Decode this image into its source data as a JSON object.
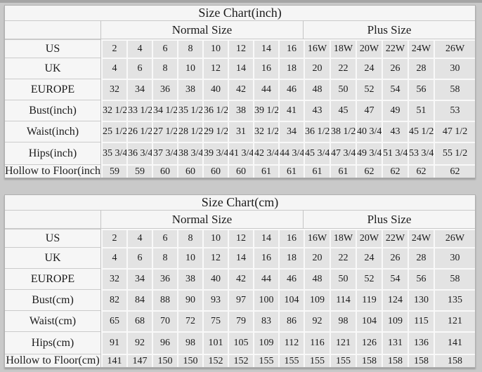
{
  "page": {
    "background_color": "#c9c9c9",
    "top_strip_color": "#a5a5a5",
    "label_cell_color": "#f6f6f6",
    "data_cell_color": "#e3e3e3",
    "text_color": "#1b1b1b"
  },
  "chart_data": [
    {
      "type": "table",
      "title": "Size Chart(inch)",
      "column_groups": [
        {
          "label": "Normal Size",
          "span": 8
        },
        {
          "label": "Plus Size",
          "span": 6
        }
      ],
      "rows": [
        {
          "label": "US",
          "values": [
            "2",
            "4",
            "6",
            "8",
            "10",
            "12",
            "14",
            "16",
            "16W",
            "18W",
            "20W",
            "22W",
            "24W",
            "26W"
          ]
        },
        {
          "label": "UK",
          "values": [
            "4",
            "6",
            "8",
            "10",
            "12",
            "14",
            "16",
            "18",
            "20",
            "22",
            "24",
            "26",
            "28",
            "30"
          ]
        },
        {
          "label": "EUROPE",
          "values": [
            "32",
            "34",
            "36",
            "38",
            "40",
            "42",
            "44",
            "46",
            "48",
            "50",
            "52",
            "54",
            "56",
            "58"
          ]
        },
        {
          "label": "Bust(inch)",
          "values": [
            "32 1/2",
            "33 1/2",
            "34 1/2",
            "35 1/2",
            "36 1/2",
            "38",
            "39 1/2",
            "41",
            "43",
            "45",
            "47",
            "49",
            "51",
            "53"
          ]
        },
        {
          "label": "Waist(inch)",
          "values": [
            "25 1/2",
            "26 1/2",
            "27 1/2",
            "28 1/2",
            "29 1/2",
            "31",
            "32 1/2",
            "34",
            "36 1/2",
            "38 1/2",
            "40 3/4",
            "43",
            "45 1/2",
            "47 1/2"
          ]
        },
        {
          "label": "Hips(inch)",
          "values": [
            "35 3/4",
            "36 3/4",
            "37 3/4",
            "38 3/4",
            "39 3/4",
            "41 3/4",
            "42 3/4",
            "44 3/4",
            "45 3/4",
            "47 3/4",
            "49 3/4",
            "51 3/4",
            "53 3/4",
            "55 1/2"
          ]
        },
        {
          "label": "Hollow to Floor(inch)",
          "values": [
            "59",
            "59",
            "60",
            "60",
            "60",
            "60",
            "61",
            "61",
            "61",
            "61",
            "62",
            "62",
            "62",
            "62"
          ]
        }
      ]
    },
    {
      "type": "table",
      "title": "Size Chart(cm)",
      "column_groups": [
        {
          "label": "Normal Size",
          "span": 8
        },
        {
          "label": "Plus Size",
          "span": 6
        }
      ],
      "rows": [
        {
          "label": "US",
          "values": [
            "2",
            "4",
            "6",
            "8",
            "10",
            "12",
            "14",
            "16",
            "16W",
            "18W",
            "20W",
            "22W",
            "24W",
            "26W"
          ]
        },
        {
          "label": "UK",
          "values": [
            "4",
            "6",
            "8",
            "10",
            "12",
            "14",
            "16",
            "18",
            "20",
            "22",
            "24",
            "26",
            "28",
            "30"
          ]
        },
        {
          "label": "EUROPE",
          "values": [
            "32",
            "34",
            "36",
            "38",
            "40",
            "42",
            "44",
            "46",
            "48",
            "50",
            "52",
            "54",
            "56",
            "58"
          ]
        },
        {
          "label": "Bust(cm)",
          "values": [
            "82",
            "84",
            "88",
            "90",
            "93",
            "97",
            "100",
            "104",
            "109",
            "114",
            "119",
            "124",
            "130",
            "135"
          ]
        },
        {
          "label": "Waist(cm)",
          "values": [
            "65",
            "68",
            "70",
            "72",
            "75",
            "79",
            "83",
            "86",
            "92",
            "98",
            "104",
            "109",
            "115",
            "121"
          ]
        },
        {
          "label": "Hips(cm)",
          "values": [
            "91",
            "92",
            "96",
            "98",
            "101",
            "105",
            "109",
            "112",
            "116",
            "121",
            "126",
            "131",
            "136",
            "141"
          ]
        },
        {
          "label": "Hollow to Floor(cm)",
          "values": [
            "141",
            "147",
            "150",
            "150",
            "152",
            "152",
            "155",
            "155",
            "155",
            "155",
            "158",
            "158",
            "158",
            "158"
          ]
        }
      ]
    }
  ]
}
